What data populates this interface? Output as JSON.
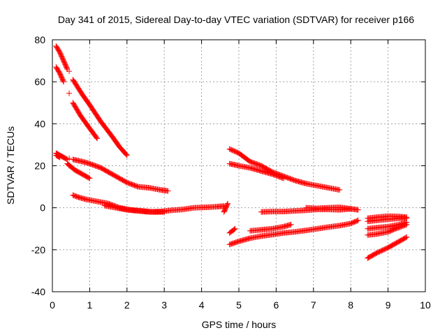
{
  "chart_data": {
    "type": "scatter",
    "title": "Day 341 of 2015, Sidereal Day-to-day VTEC variation (SDTVAR) for receiver p166",
    "xlabel": "GPS time / hours",
    "ylabel": "SDTVAR / TECUs",
    "xlim": [
      0,
      10
    ],
    "ylim": [
      -40,
      80
    ],
    "xticks": [
      "0",
      "1",
      "2",
      "3",
      "4",
      "5",
      "6",
      "7",
      "8",
      "9",
      "10"
    ],
    "yticks": [
      "-40",
      "-20",
      "0",
      "20",
      "40",
      "60",
      "80"
    ],
    "grid": true,
    "marker": "+",
    "color": "#ff0000",
    "series": [
      {
        "x": [
          0.1,
          0.2,
          0.3,
          0.4
        ],
        "y": [
          77,
          74,
          70,
          66
        ]
      },
      {
        "x": [
          0.1,
          0.2,
          0.3
        ],
        "y": [
          67,
          64,
          60
        ]
      },
      {
        "x": [
          0.45
        ],
        "y": [
          65
        ]
      },
      {
        "x": [
          0.45
        ],
        "y": [
          54.5
        ]
      },
      {
        "x": [
          0.55,
          0.8,
          1.0,
          1.3,
          1.6,
          1.8,
          2.0
        ],
        "y": [
          61,
          54,
          49,
          41,
          34,
          29,
          25
        ]
      },
      {
        "x": [
          0.55,
          0.75,
          0.95,
          1.2
        ],
        "y": [
          50,
          44,
          39,
          33
        ]
      },
      {
        "x": [
          0.1,
          0.2,
          0.3,
          0.4
        ],
        "y": [
          26,
          25,
          24,
          23
        ]
      },
      {
        "x": [
          0.1,
          0.2
        ],
        "y": [
          25,
          24
        ]
      },
      {
        "x": [
          0.4,
          0.6,
          0.8,
          1.0
        ],
        "y": [
          21,
          18,
          16,
          14
        ]
      },
      {
        "x": [
          0.45
        ],
        "y": [
          23.5
        ]
      },
      {
        "x": [
          0.45
        ],
        "y": [
          20
        ]
      },
      {
        "x": [
          0.55,
          0.8,
          1.0,
          1.3,
          1.6,
          2.0,
          2.3,
          2.6,
          2.9,
          3.1
        ],
        "y": [
          23,
          22,
          21,
          19,
          16,
          12,
          10,
          9.5,
          8.5,
          8
        ]
      },
      {
        "x": [
          0.55,
          0.7,
          0.9,
          1.2,
          1.5,
          1.8,
          2.1,
          2.4,
          2.7,
          3.0
        ],
        "y": [
          6,
          5,
          4,
          3,
          2,
          0,
          -1,
          -1.5,
          -2,
          -2
        ]
      },
      {
        "x": [
          1.4,
          1.7,
          2.0,
          2.3,
          2.6,
          2.9,
          3.2,
          3.5,
          3.8,
          4.1,
          4.4,
          4.6
        ],
        "y": [
          1,
          0,
          -1,
          -1.5,
          -2,
          -1.8,
          -1.2,
          -0.8,
          0,
          0.2,
          0.5,
          0.8
        ]
      },
      {
        "x": [
          4.6,
          4.65,
          4.7
        ],
        "y": [
          -2,
          0,
          2
        ]
      },
      {
        "x": [
          4.75,
          5.0,
          5.3,
          5.6,
          5.9,
          6.2,
          6.5,
          6.8,
          7.1,
          7.4,
          7.7
        ],
        "y": [
          28,
          26,
          22,
          20,
          17,
          15,
          13,
          11.5,
          10.5,
          9.5,
          8.5
        ]
      },
      {
        "x": [
          4.75,
          5.0,
          5.3,
          5.6,
          5.9,
          6.2
        ],
        "y": [
          21,
          20,
          19,
          17.5,
          16,
          14
        ]
      },
      {
        "x": [
          4.75,
          4.9
        ],
        "y": [
          -12,
          -10
        ]
      },
      {
        "x": [
          4.75,
          5.0,
          5.3,
          5.6,
          5.9,
          6.2,
          6.5,
          6.8,
          7.1,
          7.4,
          7.7,
          8.0,
          8.2
        ],
        "y": [
          -17.5,
          -16,
          -14.5,
          -13.5,
          -12.8,
          -12,
          -11.5,
          -10.8,
          -10,
          -9.2,
          -8.5,
          -7.5,
          -6
        ]
      },
      {
        "x": [
          5.3,
          5.6,
          5.9,
          6.2,
          6.4
        ],
        "y": [
          -11,
          -10.5,
          -10,
          -9,
          -8
        ]
      },
      {
        "x": [
          5.6,
          5.9,
          6.2,
          6.5,
          6.8,
          7.1,
          7.4,
          7.7,
          8.0,
          8.2
        ],
        "y": [
          -2,
          -1.8,
          -1.8,
          -1.5,
          -1.2,
          -0.8,
          -0.8,
          -1,
          -0.5,
          -1
        ]
      },
      {
        "x": [
          6.8,
          7.1,
          7.4,
          7.7,
          8.0
        ],
        "y": [
          0,
          -0.3,
          0,
          0.2,
          -0.5
        ]
      },
      {
        "x": [
          8.45,
          8.7,
          9.0,
          9.2,
          9.5
        ],
        "y": [
          -24,
          -21.5,
          -19,
          -17,
          -14
        ]
      },
      {
        "x": [
          8.45,
          8.7,
          9.0,
          9.2,
          9.5
        ],
        "y": [
          -13,
          -12.5,
          -11.5,
          -10,
          -8
        ]
      },
      {
        "x": [
          8.45,
          8.7,
          9.0,
          9.3,
          9.5
        ],
        "y": [
          -10,
          -9.5,
          -9,
          -8,
          -7
        ]
      },
      {
        "x": [
          8.45,
          8.7,
          9.0,
          9.3,
          9.5
        ],
        "y": [
          -6.5,
          -6,
          -5.5,
          -5,
          -5
        ]
      },
      {
        "x": [
          8.45,
          8.7,
          9.0,
          9.3,
          9.5
        ],
        "y": [
          -5,
          -4.5,
          -4,
          -4.2,
          -4.5
        ]
      }
    ]
  }
}
